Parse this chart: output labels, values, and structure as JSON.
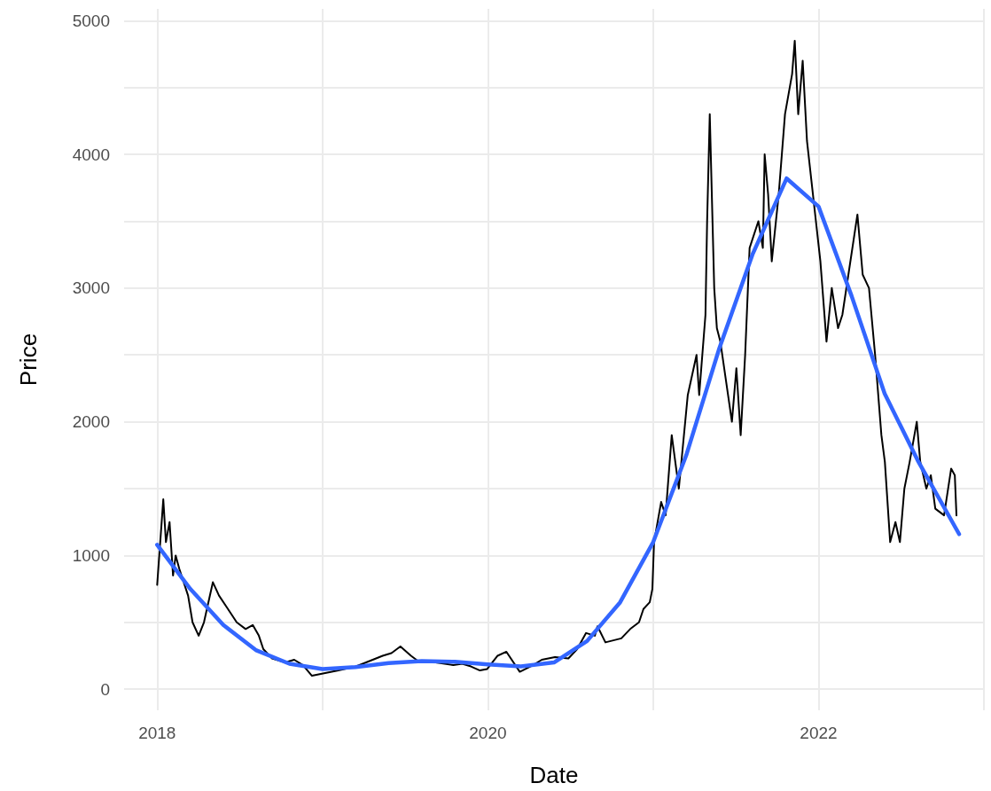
{
  "chart_data": {
    "type": "line",
    "xlabel": "Date",
    "ylabel": "Price",
    "xlim": [
      2017.8,
      2023.0
    ],
    "xticks": [
      2018,
      {
        "value": 2019,
        "label": null
      },
      2020,
      {
        "value": 2021,
        "label": null
      },
      2022,
      {
        "value": 2023,
        "label": null
      }
    ],
    "ylim": [
      -158,
      5088
    ],
    "yticks": [
      0,
      {
        "value": 500,
        "label": null
      },
      1000,
      {
        "value": 1500,
        "label": null
      },
      2000,
      {
        "value": 2500,
        "label": null
      },
      3000,
      {
        "value": 3500,
        "label": null
      },
      4000,
      {
        "value": 4500,
        "label": null
      },
      5000
    ],
    "grid": true,
    "marker": "none",
    "series": [
      {
        "color": "#000000",
        "x": [
          2018.0,
          2018.037,
          2018.053,
          2018.075,
          2018.096,
          2018.112,
          2018.134,
          2018.187,
          2018.214,
          2018.251,
          2018.283,
          2018.337,
          2018.374,
          2018.428,
          2018.481,
          2018.535,
          2018.578,
          2018.615,
          2018.642,
          2018.695,
          2018.775,
          2018.829,
          2018.882,
          2018.936,
          2019.016,
          2019.096,
          2019.203,
          2019.364,
          2019.417,
          2019.471,
          2019.535,
          2019.578,
          2019.684,
          2019.791,
          2019.845,
          2019.898,
          2019.952,
          2019.995,
          2020.059,
          2020.112,
          2020.193,
          2020.273,
          2020.326,
          2020.406,
          2020.487,
          2020.54,
          2020.594,
          2020.647,
          2020.663,
          2020.711,
          2020.807,
          2020.861,
          2020.914,
          2020.941,
          2020.979,
          2020.995,
          2021.005,
          2021.048,
          2021.075,
          2021.112,
          2021.155,
          2021.209,
          2021.262,
          2021.278,
          2021.316,
          2021.326,
          2021.342,
          2021.369,
          2021.385,
          2021.406,
          2021.476,
          2021.503,
          2021.529,
          2021.556,
          2021.583,
          2021.636,
          2021.663,
          2021.674,
          2021.695,
          2021.717,
          2021.759,
          2021.797,
          2021.84,
          2021.856,
          2021.877,
          2021.904,
          2021.93,
          2021.957,
          2022.011,
          2022.048,
          2022.08,
          2022.118,
          2022.144,
          2022.235,
          2022.267,
          2022.305,
          2022.342,
          2022.38,
          2022.401,
          2022.433,
          2022.465,
          2022.492,
          2022.519,
          2022.551,
          2022.594,
          2022.615,
          2022.652,
          2022.679,
          2022.706,
          2022.759,
          2022.802,
          2022.824,
          2022.834
        ],
        "values": [
          780,
          1420,
          1100,
          1250,
          850,
          1000,
          900,
          700,
          500,
          400,
          500,
          800,
          700,
          600,
          500,
          450,
          480,
          400,
          300,
          230,
          200,
          220,
          180,
          100,
          120,
          140,
          170,
          250,
          270,
          320,
          250,
          210,
          200,
          180,
          190,
          170,
          140,
          150,
          250,
          280,
          130,
          180,
          220,
          240,
          230,
          300,
          420,
          400,
          470,
          350,
          380,
          450,
          500,
          600,
          650,
          750,
          1100,
          1400,
          1300,
          1900,
          1500,
          2200,
          2500,
          2200,
          2800,
          3500,
          4300,
          3000,
          2700,
          2600,
          2000,
          2400,
          1900,
          2500,
          3300,
          3500,
          3300,
          4000,
          3700,
          3200,
          3700,
          4300,
          4600,
          4850,
          4300,
          4700,
          4100,
          3800,
          3200,
          2600,
          3000,
          2700,
          2800,
          3550,
          3100,
          3000,
          2500,
          1900,
          1700,
          1100,
          1250,
          1100,
          1500,
          1700,
          2000,
          1700,
          1500,
          1600,
          1350,
          1300,
          1650,
          1600,
          1300
        ]
      },
      {
        "color": "#3366ff",
        "x": [
          2018.0,
          2018.2,
          2018.4,
          2018.6,
          2018.8,
          2019.0,
          2019.2,
          2019.4,
          2019.6,
          2019.8,
          2020.0,
          2020.2,
          2020.4,
          2020.6,
          2020.8,
          2021.0,
          2021.2,
          2021.4,
          2021.6,
          2021.807,
          2022.0,
          2022.2,
          2022.4,
          2022.6,
          2022.85
        ],
        "values": [
          1080,
          750,
          480,
          290,
          190,
          150,
          165,
          195,
          210,
          205,
          185,
          170,
          200,
          360,
          650,
          1100,
          1750,
          2550,
          3250,
          3820,
          3610,
          2940,
          2210,
          1710,
          1160
        ]
      }
    ]
  }
}
